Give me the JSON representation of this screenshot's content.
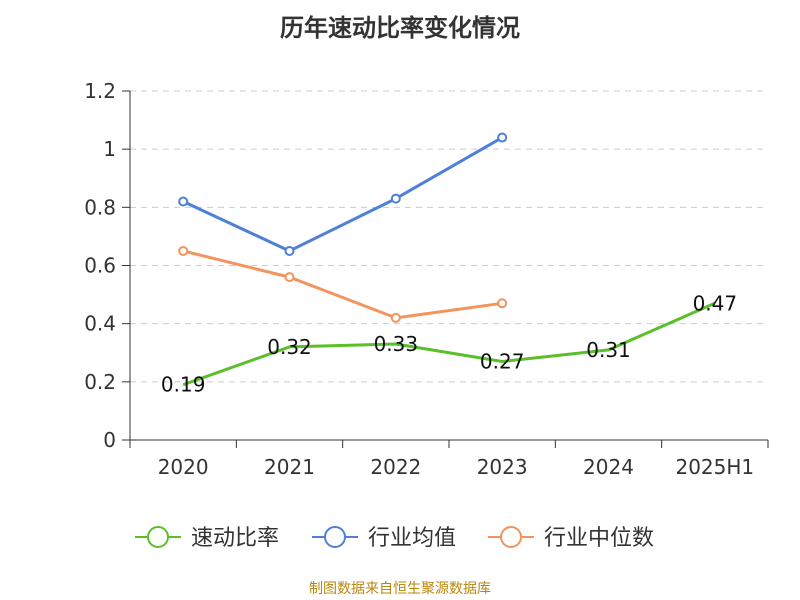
{
  "chart_data": {
    "type": "line",
    "title": "历年速动比率变化情况",
    "categories": [
      "2020",
      "2021",
      "2022",
      "2023",
      "2024",
      "2025H1"
    ],
    "ylim": [
      0,
      1.2
    ],
    "yticks": [
      "0",
      "0.2",
      "0.4",
      "0.6",
      "0.8",
      "1",
      "1.2"
    ],
    "grid": true,
    "legend_position": "bottom",
    "series": [
      {
        "name": "速动比率",
        "color": "#5bbf2a",
        "marker": "none",
        "labels": true,
        "values": [
          0.19,
          0.32,
          0.33,
          0.27,
          0.31,
          0.47
        ]
      },
      {
        "name": "行业均值",
        "color": "#4e7fd9",
        "marker": "circle",
        "labels": false,
        "values": [
          0.82,
          0.65,
          0.83,
          1.04,
          null,
          null
        ]
      },
      {
        "name": "行业中位数",
        "color": "#f4935c",
        "marker": "circle",
        "labels": false,
        "values": [
          0.65,
          0.56,
          0.42,
          0.47,
          null,
          null
        ]
      }
    ]
  },
  "source_note": "制图数据来自恒生聚源数据库"
}
